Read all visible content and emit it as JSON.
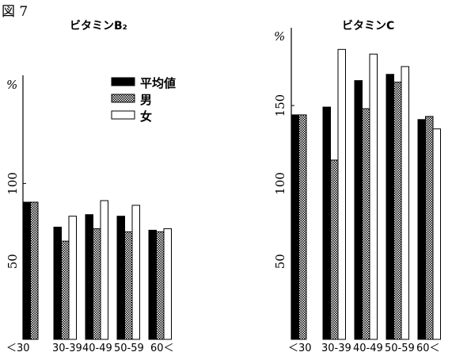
{
  "figure_label": "図 7",
  "legend": {
    "items": [
      {
        "label": "平均値",
        "color": "#000000",
        "pattern": "solid"
      },
      {
        "label": "男",
        "color": "#8a8a8a",
        "pattern": "hatched"
      },
      {
        "label": "女",
        "color": "#ffffff",
        "pattern": "outline"
      }
    ]
  },
  "chart_data": [
    {
      "type": "bar",
      "title": "ビタミンB₂",
      "unit": "%",
      "categories": [
        "<30",
        "30-39",
        "40-49",
        "50-59",
        "60<"
      ],
      "category_labels": [
        "＜30",
        "30-39",
        "40-49",
        "50-59",
        "60＜"
      ],
      "series": [
        {
          "name": "平均値",
          "values": [
            88,
            72,
            80,
            79,
            70
          ]
        },
        {
          "name": "男",
          "values": [
            88,
            63,
            71,
            69,
            69
          ]
        },
        {
          "name": "女",
          "values": [
            null,
            79,
            89,
            86,
            71
          ]
        }
      ],
      "yticks": [
        50,
        100
      ],
      "ylim": [
        0,
        160
      ],
      "grid": false
    },
    {
      "type": "bar",
      "title": "ビタミンC",
      "unit": "%",
      "categories": [
        "<30",
        "30-39",
        "40-49",
        "50-59",
        "60<"
      ],
      "category_labels": [
        "＜30",
        "30-39",
        "40-49",
        "50-59",
        "60＜"
      ],
      "series": [
        {
          "name": "平均値",
          "values": [
            144,
            149,
            166,
            170,
            141
          ]
        },
        {
          "name": "男",
          "values": [
            144,
            115,
            148,
            165,
            143
          ]
        },
        {
          "name": "女",
          "values": [
            null,
            186,
            183,
            175,
            135
          ]
        }
      ],
      "yticks": [
        50,
        100,
        150
      ],
      "ylim": [
        0,
        195
      ],
      "grid": false
    }
  ]
}
